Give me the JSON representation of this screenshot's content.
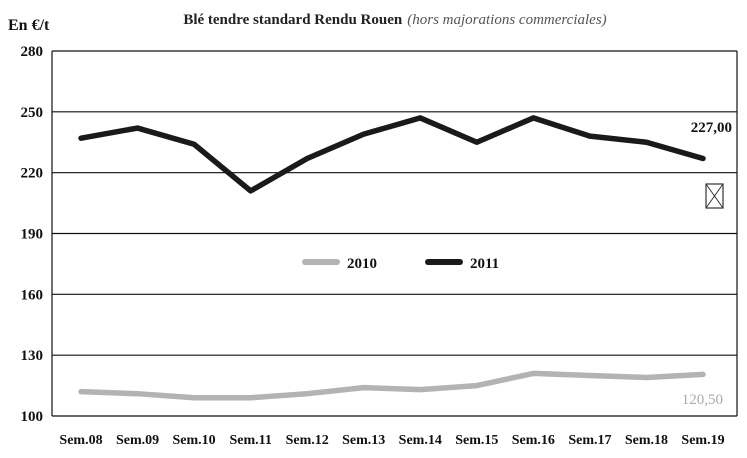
{
  "chart_data": {
    "type": "line",
    "title": "Blé tendre standard Rendu Rouen",
    "subtitle": "(hors majorations commerciales)",
    "ylabel": "En €/t",
    "xlabel": "",
    "ylim": [
      100,
      280
    ],
    "yticks": [
      100,
      130,
      160,
      190,
      220,
      250,
      280
    ],
    "grid": true,
    "legend_position": "center",
    "categories": [
      "Sem.08",
      "Sem.09",
      "Sem.10",
      "Sem.11",
      "Sem.12",
      "Sem.13",
      "Sem.14",
      "Sem.15",
      "Sem.16",
      "Sem.17",
      "Sem.18",
      "Sem.19"
    ],
    "series": [
      {
        "name": "2010",
        "color": "#b3b3b3",
        "values": [
          112,
          111,
          109,
          109,
          111,
          114,
          113,
          115,
          121,
          120,
          119,
          120.5
        ],
        "end_label": "120,50"
      },
      {
        "name": "2011",
        "color": "#1a1a1a",
        "values": [
          237,
          242,
          234,
          211,
          227,
          239,
          247,
          235,
          247,
          238,
          235,
          227
        ],
        "end_label": "227,00"
      }
    ]
  },
  "marker_icon": "crossed-box-icon"
}
